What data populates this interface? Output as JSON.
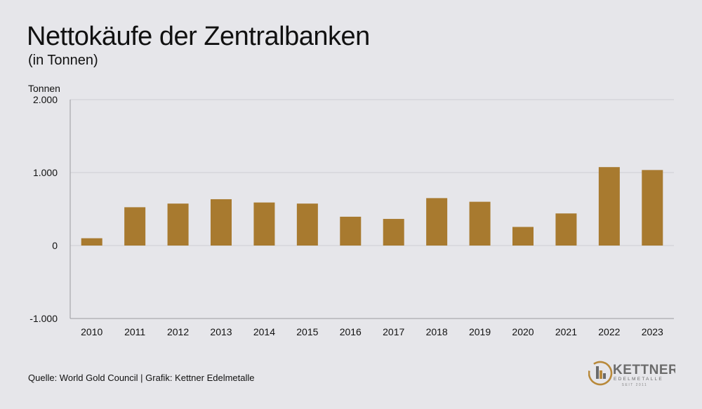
{
  "header": {
    "title": "Nettokäufe der Zentralbanken",
    "subtitle": "(in Tonnen)"
  },
  "footer": {
    "source": "Quelle: World Gold Council | Grafik: Kettner Edelmetalle"
  },
  "logo": {
    "name": "KETTNER",
    "tagline": "EDELMETALLE",
    "since": "SEIT 2011"
  },
  "colors": {
    "bar": "#a87a2f",
    "grid": "#cfcfd4",
    "axis": "#9a9a9f",
    "logo_gold": "#b8893a",
    "logo_gray": "#6b6b6b"
  },
  "chart_data": {
    "type": "bar",
    "ylabel": "Tonnen",
    "categories": [
      "2010",
      "2011",
      "2012",
      "2013",
      "2014",
      "2015",
      "2016",
      "2017",
      "2018",
      "2019",
      "2020",
      "2021",
      "2022",
      "2023"
    ],
    "values": [
      100,
      525,
      575,
      635,
      590,
      575,
      395,
      365,
      650,
      600,
      255,
      440,
      1075,
      1035
    ],
    "ylim": [
      -1000,
      2000
    ],
    "yticks": [
      -1000,
      0,
      1000,
      2000
    ],
    "ytick_labels": [
      "-1.000",
      "0",
      "1.000",
      "2.000"
    ],
    "grid": true,
    "legend": "none"
  }
}
